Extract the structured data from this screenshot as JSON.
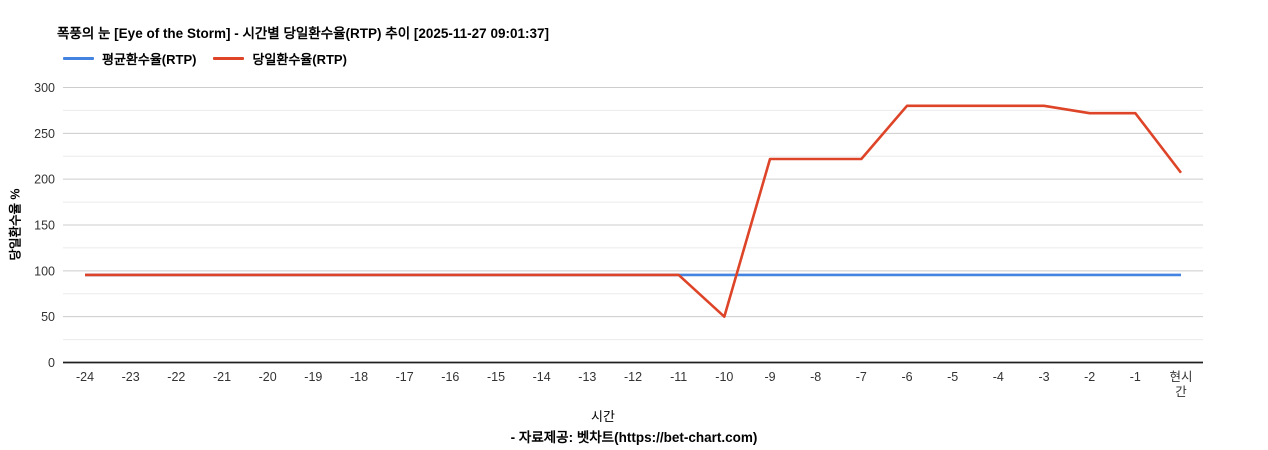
{
  "title": "폭풍의 눈 [Eye of the Storm] - 시간별 당일환수율(RTP) 추이 [2025-11-27 09:01:37]",
  "legend": [
    {
      "label": "평균환수율(RTP)",
      "color": "#4583e0"
    },
    {
      "label": "당일환수율(RTP)",
      "color": "#dd4428"
    }
  ],
  "footer": "- 자료제공: 벳차트(https://bet-chart.com)",
  "chart_data": {
    "type": "line",
    "title": "폭풍의 눈 [Eye of the Storm] - 시간별 당일환수율(RTP) 추이 [2025-11-27 09:01:37]",
    "xlabel": "시간",
    "ylabel": "당일환수율 %",
    "x_categories": [
      "-24",
      "-23",
      "-22",
      "-21",
      "-20",
      "-19",
      "-18",
      "-17",
      "-16",
      "-15",
      "-14",
      "-13",
      "-12",
      "-11",
      "-10",
      "-9",
      "-8",
      "-7",
      "-6",
      "-5",
      "-4",
      "-3",
      "-2",
      "-1",
      "현시간"
    ],
    "ylim": [
      0,
      300
    ],
    "y_major_ticks": [
      0,
      50,
      100,
      150,
      200,
      250,
      300
    ],
    "y_minor_step": 25,
    "grid": true,
    "legend_position": "top",
    "series": [
      {
        "name": "평균환수율(RTP)",
        "color": "#4583e0",
        "values": [
          95.5,
          95.5,
          95.5,
          95.5,
          95.5,
          95.5,
          95.5,
          95.5,
          95.5,
          95.5,
          95.5,
          95.5,
          95.5,
          95.5,
          95.5,
          95.5,
          95.5,
          95.5,
          95.5,
          95.5,
          95.5,
          95.5,
          95.5,
          95.5,
          95.5
        ]
      },
      {
        "name": "당일환수율(RTP)",
        "color": "#dd4428",
        "values": [
          95.5,
          95.5,
          95.5,
          95.5,
          95.5,
          95.5,
          95.5,
          95.5,
          95.5,
          95.5,
          95.5,
          95.5,
          95.5,
          95.5,
          50,
          222,
          222,
          222,
          280,
          280,
          280,
          280,
          272,
          272,
          207
        ]
      }
    ]
  }
}
